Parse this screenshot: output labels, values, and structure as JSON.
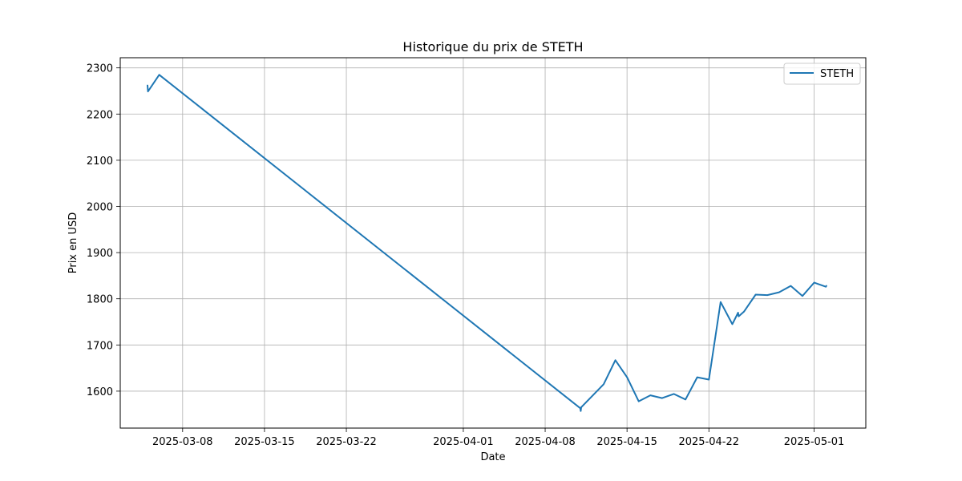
{
  "chart_data": {
    "type": "line",
    "title": "Historique du prix de STETH",
    "xlabel": "Date",
    "ylabel": "Prix en USD",
    "grid": true,
    "legend_position": "top-right",
    "x_ticks": [
      "2025-03-08",
      "2025-03-15",
      "2025-03-22",
      "2025-04-01",
      "2025-04-08",
      "2025-04-15",
      "2025-04-22",
      "2025-05-01"
    ],
    "y_ticks": [
      1600,
      1700,
      1800,
      1900,
      2000,
      2100,
      2200,
      2300
    ],
    "xlim": [
      "2025-03-02T16:00",
      "2025-05-05T10:00"
    ],
    "ylim": [
      1520,
      2322
    ],
    "series": [
      {
        "name": "STETH",
        "color": "#1f77b4",
        "points": [
          {
            "x": "2025-03-05T00:00",
            "y": 2262
          },
          {
            "x": "2025-03-05T01:00",
            "y": 2249
          },
          {
            "x": "2025-03-06T00:00",
            "y": 2285
          },
          {
            "x": "2025-04-11T00:00",
            "y": 1563
          },
          {
            "x": "2025-04-11T01:00",
            "y": 1557
          },
          {
            "x": "2025-04-11T02:00",
            "y": 1565
          },
          {
            "x": "2025-04-13T00:00",
            "y": 1615
          },
          {
            "x": "2025-04-14T00:00",
            "y": 1667
          },
          {
            "x": "2025-04-15T00:00",
            "y": 1630
          },
          {
            "x": "2025-04-16T00:00",
            "y": 1578
          },
          {
            "x": "2025-04-17T00:00",
            "y": 1591
          },
          {
            "x": "2025-04-18T00:00",
            "y": 1585
          },
          {
            "x": "2025-04-19T00:00",
            "y": 1594
          },
          {
            "x": "2025-04-20T00:00",
            "y": 1582
          },
          {
            "x": "2025-04-21T00:00",
            "y": 1630
          },
          {
            "x": "2025-04-22T00:00",
            "y": 1625
          },
          {
            "x": "2025-04-23T00:00",
            "y": 1793
          },
          {
            "x": "2025-04-24T00:00",
            "y": 1745
          },
          {
            "x": "2025-04-24T12:00",
            "y": 1770
          },
          {
            "x": "2025-04-24T13:00",
            "y": 1762
          },
          {
            "x": "2025-04-25T00:00",
            "y": 1772
          },
          {
            "x": "2025-04-26T00:00",
            "y": 1809
          },
          {
            "x": "2025-04-27T00:00",
            "y": 1808
          },
          {
            "x": "2025-04-28T00:00",
            "y": 1814
          },
          {
            "x": "2025-04-29T00:00",
            "y": 1828
          },
          {
            "x": "2025-04-30T00:00",
            "y": 1806
          },
          {
            "x": "2025-05-01T00:00",
            "y": 1835
          },
          {
            "x": "2025-05-02T00:00",
            "y": 1826
          },
          {
            "x": "2025-05-02T01:00",
            "y": 1828
          }
        ]
      }
    ]
  }
}
